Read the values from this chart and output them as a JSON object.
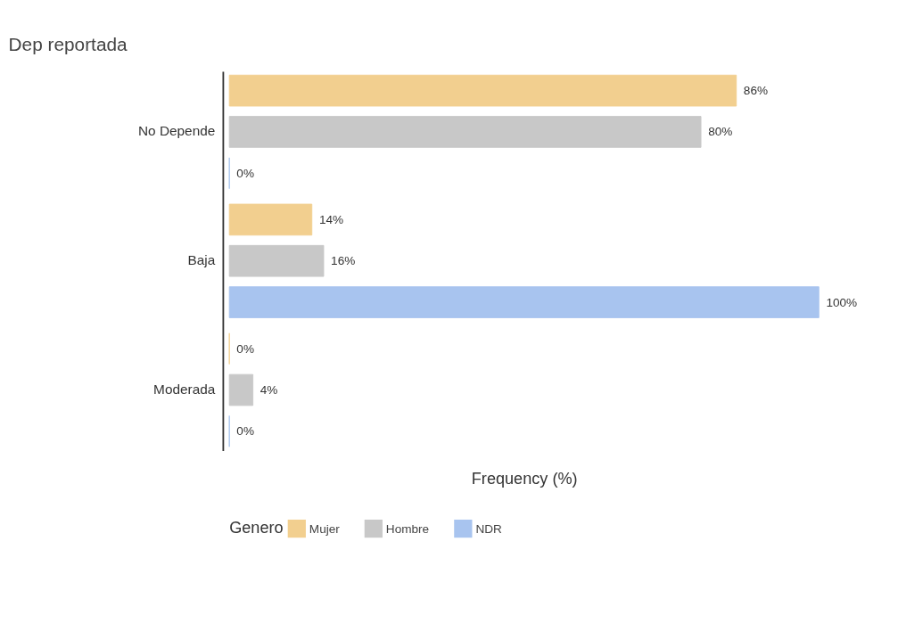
{
  "chart_data": {
    "type": "bar",
    "orientation": "horizontal",
    "title": "Dep reportada",
    "xlabel": "Frequency (%)",
    "legend_title": "Genero",
    "legend": "bottom",
    "tick_labels": "y",
    "categories": [
      "No Depende",
      "Baja",
      "Moderada"
    ],
    "series": [
      {
        "name": "Mujer",
        "color": "#f2cf8f",
        "values": [
          86,
          14,
          0
        ],
        "value_labels": [
          "86%",
          "14%",
          "0%"
        ]
      },
      {
        "name": "Hombre",
        "color": "#c8c8c8",
        "values": [
          80,
          16,
          4
        ],
        "value_labels": [
          "80%",
          "16%",
          "4%"
        ]
      },
      {
        "name": "NDR",
        "color": "#a8c4ef",
        "values": [
          0,
          100,
          0
        ],
        "value_labels": [
          "0%",
          "100%",
          "0%"
        ]
      }
    ]
  }
}
